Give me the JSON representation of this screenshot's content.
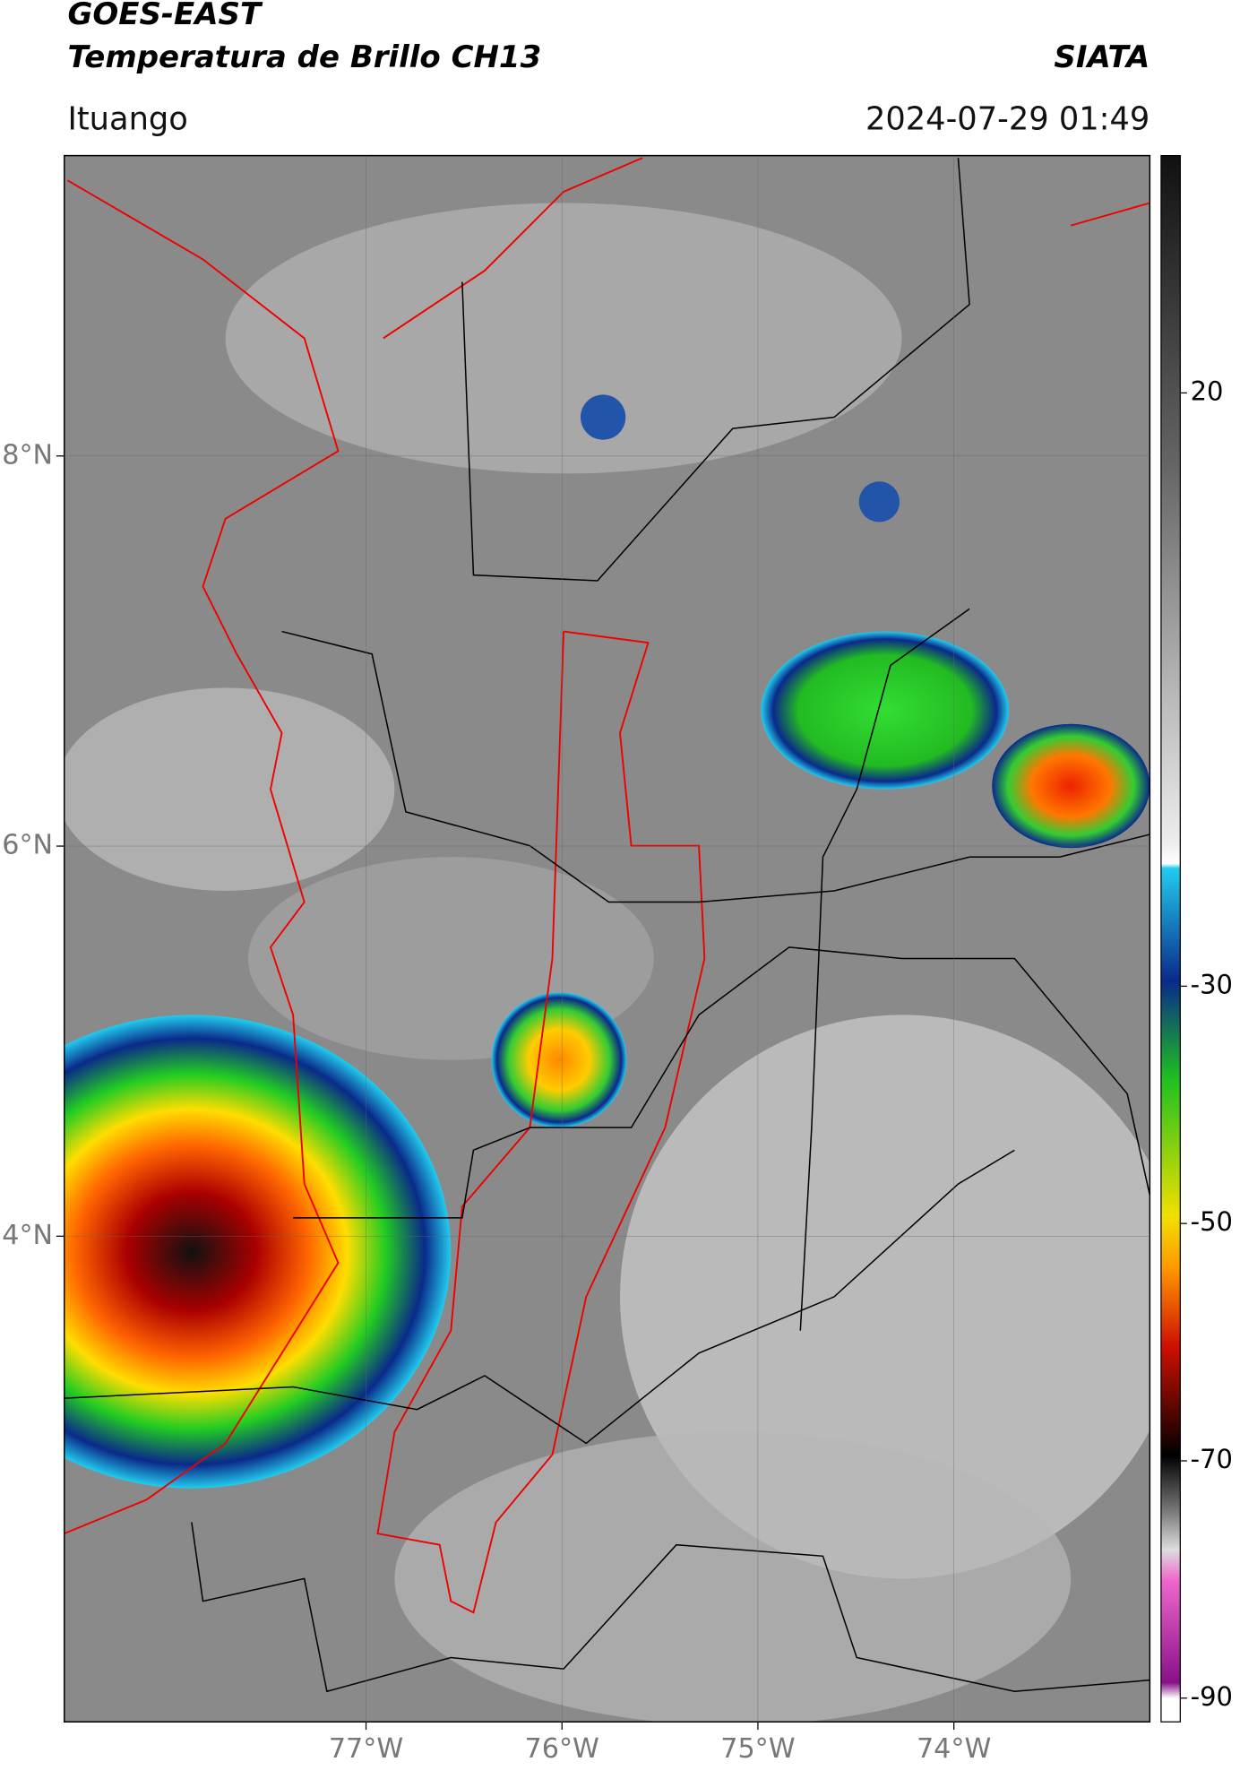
{
  "header": {
    "title": "GOES-EAST",
    "subtitle": "Temperatura de Brillo CH13",
    "brand": "SIATA",
    "location": "Ituango",
    "datetime": "2024-07-29 01:49"
  },
  "map": {
    "xlim": [
      -78.54,
      -73.0
    ],
    "ylim": [
      1.51,
      9.54
    ],
    "xticks": [
      {
        "value": -77,
        "label": "77°W"
      },
      {
        "value": -76,
        "label": "76°W"
      },
      {
        "value": -75,
        "label": "75°W"
      },
      {
        "value": -74,
        "label": "74°W"
      }
    ],
    "yticks": [
      {
        "value": 8,
        "label": "8°N"
      },
      {
        "value": 6,
        "label": "6°N"
      },
      {
        "value": 4,
        "label": "4°N"
      }
    ],
    "grid": true
  },
  "colorbar": {
    "ylim": [
      -92,
      40
    ],
    "yticks": [
      20,
      -30,
      -50,
      -70,
      -90
    ]
  }
}
